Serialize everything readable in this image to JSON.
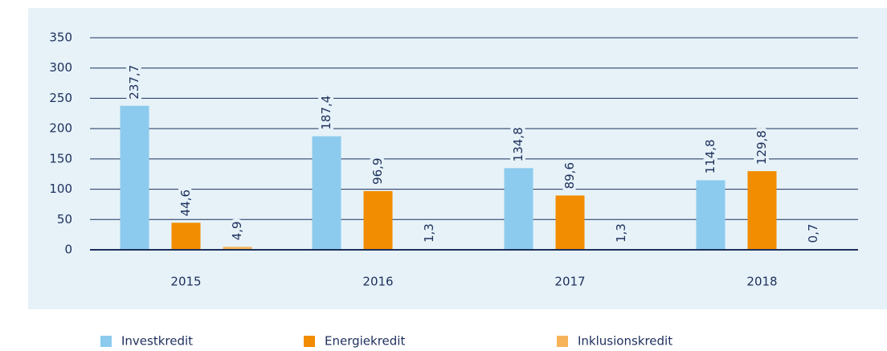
{
  "chart_data": {
    "type": "bar",
    "categories": [
      "2015",
      "2016",
      "2017",
      "2018"
    ],
    "series": [
      {
        "name": "Investkredit",
        "color": "#8ccbee",
        "values": [
          237.7,
          187.4,
          134.8,
          114.8
        ],
        "value_labels": [
          "237,7",
          "187,4",
          "134,8",
          "114,8"
        ]
      },
      {
        "name": "Energiekredit",
        "color": "#f28c00",
        "values": [
          44.6,
          96.9,
          89.6,
          129.8
        ],
        "value_labels": [
          "44,6",
          "96,9",
          "89,6",
          "129,8"
        ]
      },
      {
        "name": "Inklusionskredit",
        "color": "#f7b35a",
        "values": [
          4.9,
          1.3,
          1.3,
          0.7
        ],
        "value_labels": [
          "4,9",
          "1,3",
          "1,3",
          "0,7"
        ]
      }
    ],
    "ylim": [
      0,
      350
    ],
    "yticks": [
      0,
      50,
      100,
      150,
      200,
      250,
      300,
      350
    ],
    "grid": true,
    "legend": "bottom"
  }
}
